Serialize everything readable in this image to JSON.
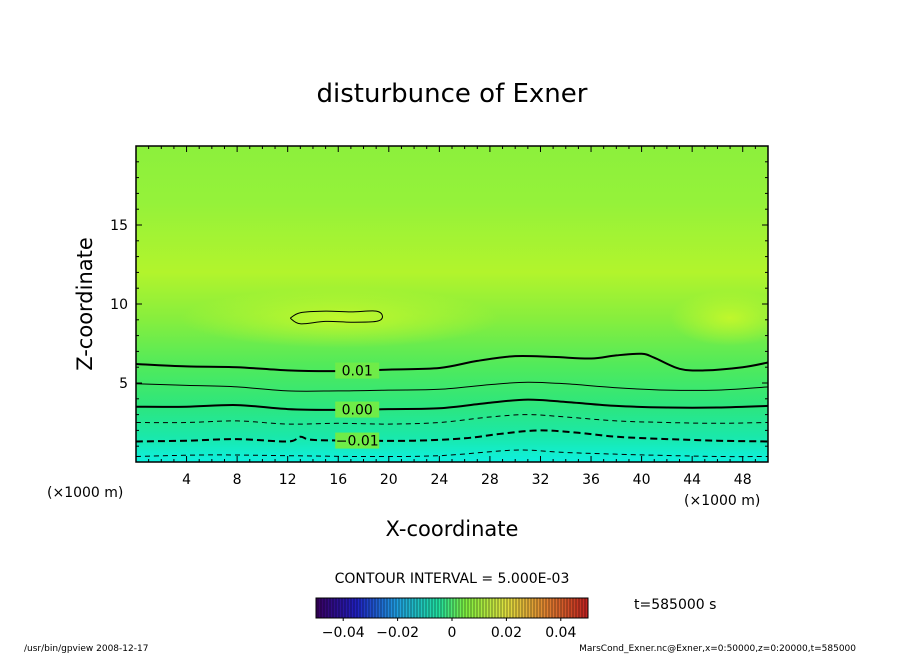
{
  "chart_data": {
    "type": "contour",
    "title": "disturbunce of Exner",
    "xlabel": "X-coordinate",
    "ylabel": "Z-coordinate",
    "x_unit": "(×1000 m)",
    "y_unit": "(×1000 m)",
    "xlim": [
      0,
      50
    ],
    "ylim": [
      0,
      20
    ],
    "x_ticks": [
      4,
      8,
      12,
      16,
      20,
      24,
      28,
      32,
      36,
      40,
      44,
      48
    ],
    "y_ticks": [
      5,
      10,
      15
    ],
    "contour_interval_text": "CONTOUR INTERVAL = 5.000E-03",
    "time_text": "t=585000 s",
    "colorbar": {
      "range": [
        -0.05,
        0.05
      ],
      "tick_values": [
        -0.04,
        -0.02,
        0,
        0.02,
        0.04
      ],
      "tick_labels": [
        "−0.04",
        "−0.02",
        "0",
        "0.02",
        "0.04"
      ]
    },
    "contours": [
      {
        "level": 0.015,
        "style": "solid-thin",
        "closed": true,
        "points": [
          [
            12.2,
            9.1
          ],
          [
            13,
            9.45
          ],
          [
            15,
            9.55
          ],
          [
            17,
            9.5
          ],
          [
            19,
            9.55
          ],
          [
            19.5,
            9.2
          ],
          [
            19,
            8.9
          ],
          [
            17,
            8.85
          ],
          [
            15,
            8.9
          ],
          [
            13,
            8.75
          ],
          [
            12.2,
            9.1
          ]
        ]
      },
      {
        "level": 0.01,
        "label": "0.01",
        "style": "solid-thick",
        "points": [
          [
            0,
            6.2
          ],
          [
            4,
            6.05
          ],
          [
            8,
            6.0
          ],
          [
            12,
            5.8
          ],
          [
            16,
            5.75
          ],
          [
            20,
            5.85
          ],
          [
            24,
            5.95
          ],
          [
            27,
            6.4
          ],
          [
            30,
            6.7
          ],
          [
            33,
            6.65
          ],
          [
            36,
            6.55
          ],
          [
            38,
            6.75
          ],
          [
            40,
            6.85
          ],
          [
            41,
            6.6
          ],
          [
            43,
            5.9
          ],
          [
            45,
            5.8
          ],
          [
            48,
            6.0
          ],
          [
            50,
            6.3
          ]
        ]
      },
      {
        "level": 0.005,
        "style": "solid-thin",
        "points": [
          [
            0,
            4.95
          ],
          [
            4,
            4.85
          ],
          [
            8,
            4.75
          ],
          [
            12,
            4.5
          ],
          [
            16,
            4.5
          ],
          [
            20,
            4.55
          ],
          [
            24,
            4.6
          ],
          [
            28,
            4.9
          ],
          [
            31,
            5.05
          ],
          [
            34,
            4.95
          ],
          [
            38,
            4.7
          ],
          [
            42,
            4.55
          ],
          [
            46,
            4.55
          ],
          [
            50,
            4.75
          ]
        ]
      },
      {
        "level": 0.0,
        "label": "0.00",
        "style": "solid-thick",
        "points": [
          [
            0,
            3.5
          ],
          [
            4,
            3.5
          ],
          [
            8,
            3.6
          ],
          [
            12,
            3.35
          ],
          [
            16,
            3.3
          ],
          [
            20,
            3.35
          ],
          [
            24,
            3.4
          ],
          [
            28,
            3.75
          ],
          [
            31,
            3.95
          ],
          [
            34,
            3.8
          ],
          [
            38,
            3.55
          ],
          [
            42,
            3.45
          ],
          [
            46,
            3.45
          ],
          [
            50,
            3.55
          ]
        ]
      },
      {
        "level": -0.005,
        "style": "dashed-thin",
        "points": [
          [
            0,
            2.5
          ],
          [
            4,
            2.5
          ],
          [
            8,
            2.6
          ],
          [
            12,
            2.4
          ],
          [
            16,
            2.45
          ],
          [
            20,
            2.4
          ],
          [
            24,
            2.5
          ],
          [
            28,
            2.85
          ],
          [
            31,
            3.0
          ],
          [
            34,
            2.85
          ],
          [
            38,
            2.6
          ],
          [
            42,
            2.5
          ],
          [
            46,
            2.45
          ],
          [
            50,
            2.5
          ]
        ]
      },
      {
        "level": -0.01,
        "label": "−0.01",
        "style": "dashed-thick",
        "points": [
          [
            0,
            1.3
          ],
          [
            4,
            1.35
          ],
          [
            8,
            1.45
          ],
          [
            12,
            1.3
          ],
          [
            13,
            1.6
          ],
          [
            14,
            1.4
          ],
          [
            18,
            1.35
          ],
          [
            22,
            1.35
          ],
          [
            26,
            1.5
          ],
          [
            29,
            1.8
          ],
          [
            32,
            2.0
          ],
          [
            35,
            1.85
          ],
          [
            38,
            1.6
          ],
          [
            42,
            1.45
          ],
          [
            46,
            1.35
          ],
          [
            50,
            1.3
          ]
        ]
      },
      {
        "level": -0.015,
        "style": "dashed-thin",
        "points": [
          [
            0,
            0.35
          ],
          [
            6,
            0.45
          ],
          [
            12,
            0.4
          ],
          [
            18,
            0.35
          ],
          [
            24,
            0.4
          ],
          [
            30,
            0.75
          ],
          [
            34,
            0.6
          ],
          [
            40,
            0.45
          ],
          [
            46,
            0.35
          ],
          [
            50,
            0.35
          ]
        ]
      }
    ]
  },
  "footer": {
    "left": "/usr/bin/gpview   2008-12-17",
    "right": "MarsCond_Exner.nc@Exner,x=0:50000,z=0:20000,t=585000"
  }
}
